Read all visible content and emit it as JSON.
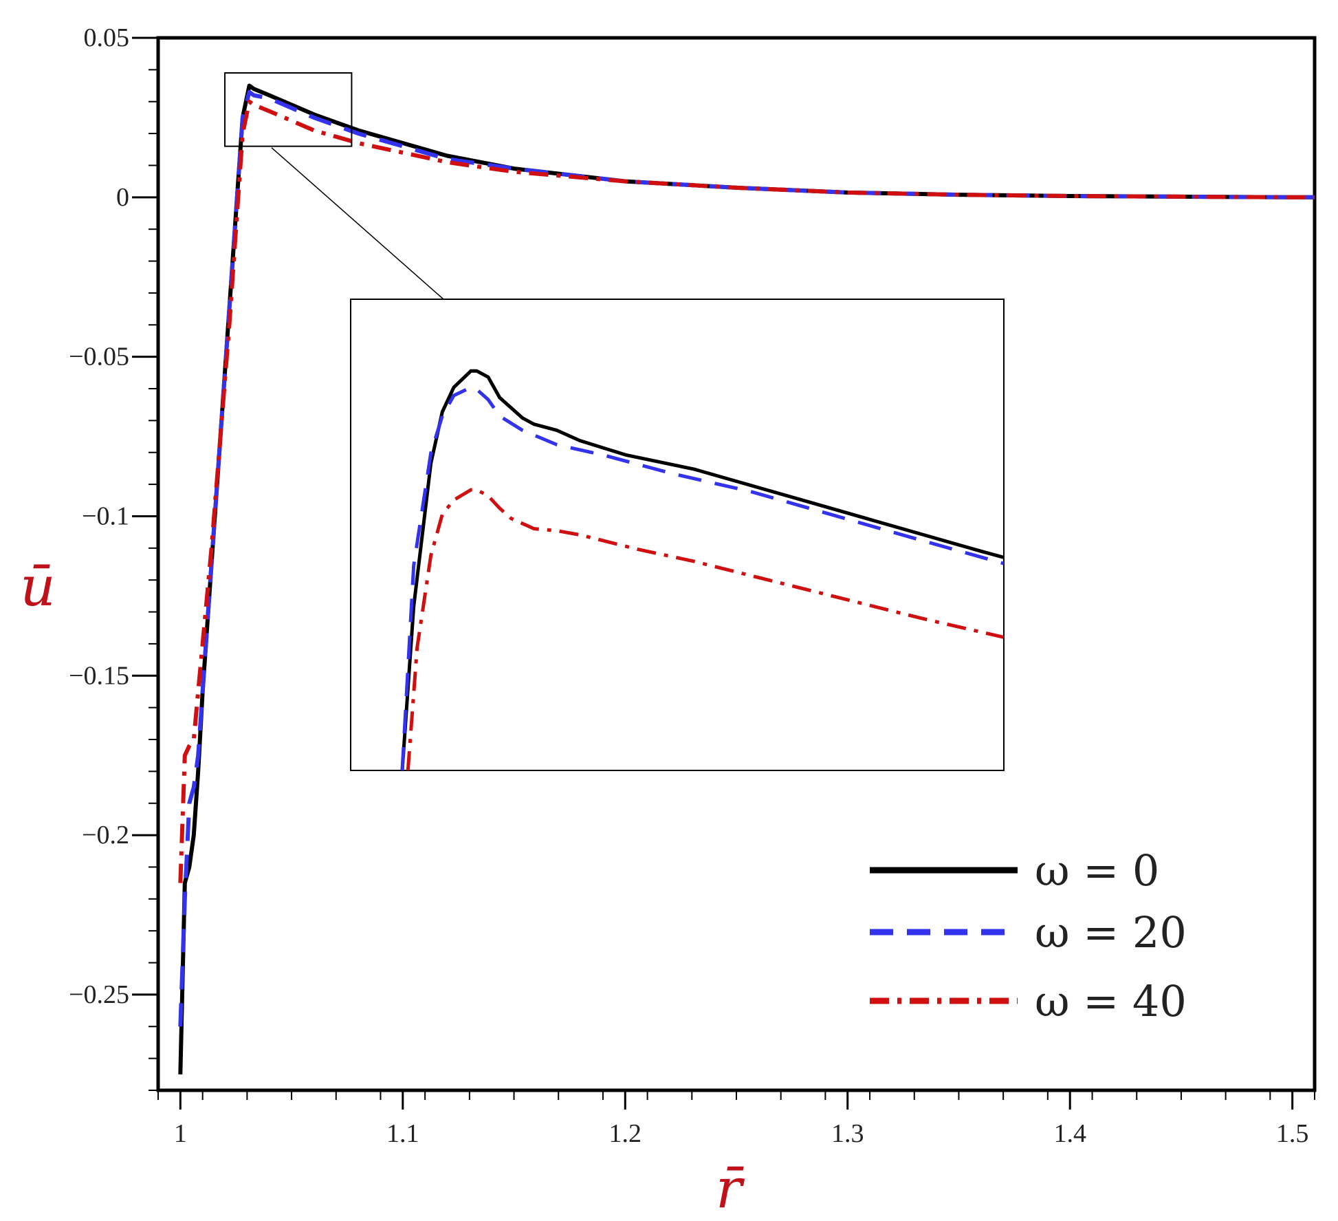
{
  "chart_data": {
    "type": "line",
    "xlabel": "r̄",
    "ylabel": "ū",
    "xlim": [
      0.99,
      1.51
    ],
    "ylim": [
      -0.28,
      0.05
    ],
    "x_ticks": [
      1,
      1.1,
      1.2,
      1.3,
      1.4,
      1.5
    ],
    "x_tick_labels": [
      "1",
      "1.1",
      "1.2",
      "1.3",
      "1.4",
      "1.5"
    ],
    "y_ticks": [
      0.05,
      0,
      -0.05,
      -0.1,
      -0.15,
      -0.2,
      -0.25
    ],
    "y_tick_labels": [
      "0.05",
      "0",
      "−0.05",
      "−0.1",
      "−0.15",
      "−0.2",
      "−0.25"
    ],
    "grid": false,
    "legend_position": "bottom-right",
    "series": [
      {
        "name": "ω = 0",
        "color": "#000000",
        "style": "solid",
        "x": [
          1.0,
          1.002,
          1.004,
          1.006,
          1.008,
          1.01,
          1.014,
          1.018,
          1.022,
          1.026,
          1.028,
          1.031,
          1.033,
          1.04,
          1.05,
          1.06,
          1.08,
          1.1,
          1.12,
          1.15,
          1.2,
          1.25,
          1.3,
          1.35,
          1.4,
          1.45,
          1.5,
          1.51
        ],
        "y": [
          -0.275,
          -0.215,
          -0.21,
          -0.2,
          -0.18,
          -0.155,
          -0.115,
          -0.075,
          -0.035,
          0.005,
          0.025,
          0.035,
          0.034,
          0.032,
          0.029,
          0.026,
          0.021,
          0.017,
          0.013,
          0.009,
          0.005,
          0.003,
          0.0015,
          0.0008,
          0.0004,
          0.0002,
          0.0,
          0.0
        ]
      },
      {
        "name": "ω = 20",
        "color": "#3333ee",
        "style": "dashed",
        "x": [
          1.0,
          1.002,
          1.004,
          1.006,
          1.008,
          1.01,
          1.014,
          1.018,
          1.022,
          1.026,
          1.028,
          1.031,
          1.033,
          1.04,
          1.05,
          1.06,
          1.08,
          1.1,
          1.12,
          1.15,
          1.2,
          1.25,
          1.3,
          1.35,
          1.4,
          1.45,
          1.5,
          1.51
        ],
        "y": [
          -0.26,
          -0.22,
          -0.19,
          -0.185,
          -0.175,
          -0.155,
          -0.115,
          -0.075,
          -0.035,
          0.005,
          0.025,
          0.033,
          0.032,
          0.031,
          0.028,
          0.025,
          0.02,
          0.016,
          0.012,
          0.009,
          0.005,
          0.003,
          0.0015,
          0.0008,
          0.0004,
          0.0002,
          0.0,
          0.0
        ]
      },
      {
        "name": "ω = 40",
        "color": "#d01010",
        "style": "dashdot",
        "x": [
          1.0,
          1.002,
          1.004,
          1.006,
          1.008,
          1.01,
          1.014,
          1.018,
          1.022,
          1.026,
          1.028,
          1.031,
          1.033,
          1.04,
          1.05,
          1.06,
          1.08,
          1.1,
          1.12,
          1.15,
          1.2,
          1.25,
          1.3,
          1.35,
          1.4,
          1.45,
          1.5,
          1.51
        ],
        "y": [
          -0.215,
          -0.175,
          -0.172,
          -0.17,
          -0.155,
          -0.14,
          -0.11,
          -0.075,
          -0.04,
          0.0,
          0.02,
          0.03,
          0.029,
          0.027,
          0.024,
          0.021,
          0.017,
          0.014,
          0.011,
          0.008,
          0.005,
          0.003,
          0.0015,
          0.0008,
          0.0004,
          0.0002,
          0.0,
          0.0
        ]
      }
    ],
    "inset": {
      "source_xlim": [
        1.02,
        1.077
      ],
      "source_ylim": [
        0.016,
        0.039
      ],
      "series": [
        {
          "name": "ω = 0",
          "color": "#000000",
          "style": "solid",
          "x": [
            1.0245,
            1.0255,
            1.027,
            1.028,
            1.029,
            1.0305,
            1.031,
            1.032,
            1.033,
            1.035,
            1.036,
            1.038,
            1.04,
            1.044,
            1.05,
            1.055,
            1.06,
            1.065,
            1.07,
            1.075,
            1.077
          ],
          "y": [
            0.016,
            0.024,
            0.031,
            0.0335,
            0.0347,
            0.0355,
            0.0355,
            0.0352,
            0.0342,
            0.0332,
            0.0329,
            0.0326,
            0.0321,
            0.0314,
            0.0307,
            0.0299,
            0.0291,
            0.0283,
            0.0275,
            0.0267,
            0.0264
          ]
        },
        {
          "name": "ω = 20",
          "color": "#3333ee",
          "style": "dashed",
          "x": [
            1.0245,
            1.0255,
            1.027,
            1.028,
            1.029,
            1.0305,
            1.031,
            1.032,
            1.033,
            1.035,
            1.038,
            1.042,
            1.048,
            1.055,
            1.06,
            1.065,
            1.07,
            1.077
          ],
          "y": [
            0.016,
            0.026,
            0.0315,
            0.0333,
            0.0343,
            0.0347,
            0.0346,
            0.0341,
            0.0333,
            0.0326,
            0.0319,
            0.0314,
            0.0305,
            0.0296,
            0.0288,
            0.028,
            0.0272,
            0.0261
          ]
        },
        {
          "name": "ω = 40",
          "color": "#d01010",
          "style": "dashdot",
          "x": [
            1.025,
            1.0258,
            1.027,
            1.028,
            1.029,
            1.0305,
            1.031,
            1.032,
            1.033,
            1.034,
            1.036,
            1.038,
            1.04,
            1.045,
            1.05,
            1.055,
            1.06,
            1.065,
            1.07,
            1.077
          ],
          "y": [
            0.016,
            0.022,
            0.0265,
            0.0285,
            0.0292,
            0.0297,
            0.0297,
            0.0294,
            0.0288,
            0.0283,
            0.0278,
            0.0277,
            0.0275,
            0.0268,
            0.0262,
            0.0255,
            0.0248,
            0.0241,
            0.0234,
            0.0225
          ]
        }
      ]
    }
  }
}
